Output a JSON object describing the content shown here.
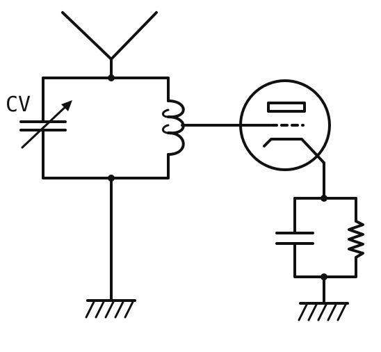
{
  "diagram": {
    "labels": {
      "variable_capacitor": "CV"
    },
    "components": [
      {
        "id": "antenna",
        "icon": "antenna-icon"
      },
      {
        "id": "variable-capacitor",
        "icon": "variable-capacitor-icon"
      },
      {
        "id": "tuning-coil",
        "icon": "inductor-icon"
      },
      {
        "id": "vacuum-tube",
        "icon": "triode-tube-icon"
      },
      {
        "id": "plate-capacitor",
        "icon": "capacitor-icon"
      },
      {
        "id": "plate-resistor",
        "icon": "resistor-icon"
      },
      {
        "id": "ground-left",
        "icon": "ground-icon"
      },
      {
        "id": "ground-right",
        "icon": "ground-icon"
      }
    ],
    "colors": {
      "ink": "#111111",
      "paper": "#ffffff"
    }
  }
}
